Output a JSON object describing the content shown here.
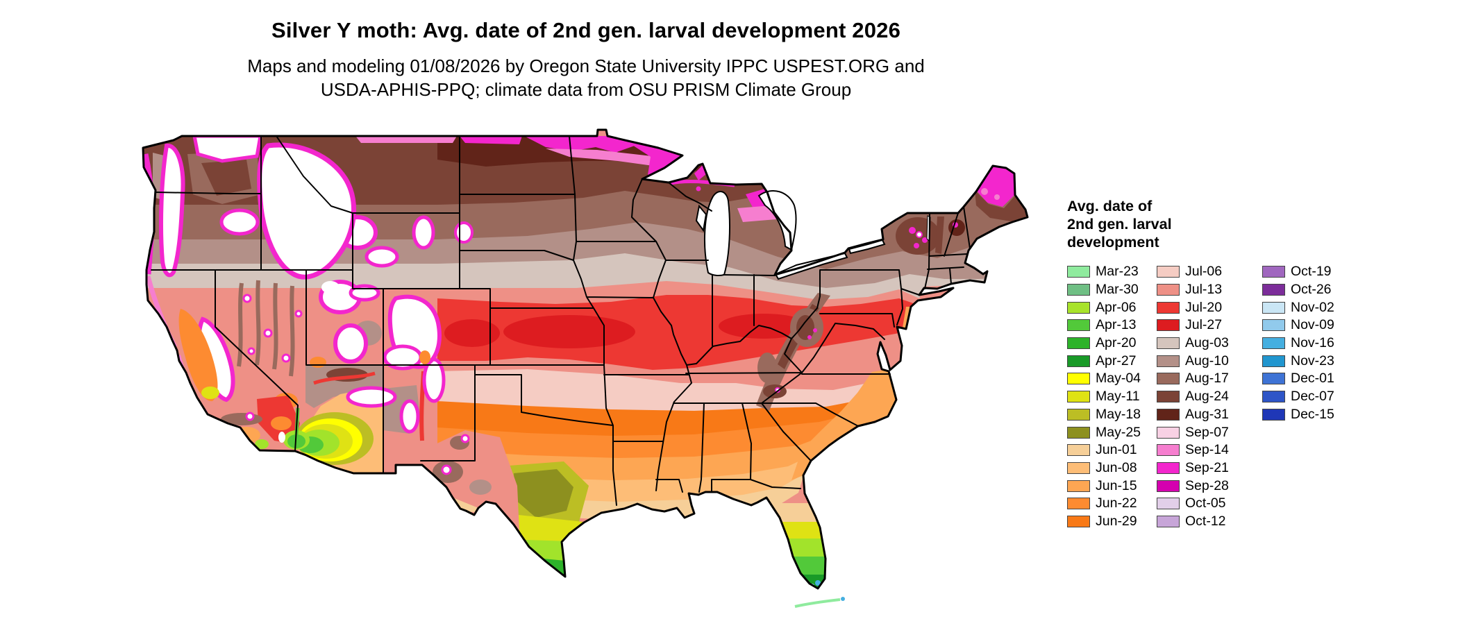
{
  "header": {
    "title": "Silver Y moth: Avg. date of 2nd gen. larval development 2026",
    "subtitle_lines": [
      "Maps and modeling 01/08/2026 by Oregon State University IPPC USPEST.ORG and",
      "USDA-APHIS-PPQ; climate data from OSU PRISM Climate Group"
    ]
  },
  "map": {
    "name": "Contiguous United States raster map of avg. date of 2nd gen. larval development",
    "no_data_color": "#ffffff",
    "boundary_color": "#000000"
  },
  "legend": {
    "title_lines": [
      "Avg. date of",
      "2nd gen. larval",
      "development"
    ],
    "columns": [
      {
        "items": [
          {
            "label": "Mar-23",
            "color": "#8feb9e"
          },
          {
            "label": "Mar-30",
            "color": "#6fbf84"
          },
          {
            "label": "Apr-06",
            "color": "#a8e32b"
          },
          {
            "label": "Apr-13",
            "color": "#52c93a"
          },
          {
            "label": "Apr-20",
            "color": "#2db32a"
          },
          {
            "label": "Apr-27",
            "color": "#199a28"
          },
          {
            "label": "May-04",
            "color": "#ffff00"
          },
          {
            "label": "May-11",
            "color": "#dfe214"
          },
          {
            "label": "May-18",
            "color": "#bcbe24"
          },
          {
            "label": "May-25",
            "color": "#8d901f"
          },
          {
            "label": "Jun-01",
            "color": "#f6cf98"
          },
          {
            "label": "Jun-08",
            "color": "#fdbd77"
          },
          {
            "label": "Jun-15",
            "color": "#fda653"
          },
          {
            "label": "Jun-22",
            "color": "#fd8b31"
          },
          {
            "label": "Jun-29",
            "color": "#f87917"
          }
        ]
      },
      {
        "items": [
          {
            "label": "Jul-06",
            "color": "#f5ccc3"
          },
          {
            "label": "Jul-13",
            "color": "#ee9086"
          },
          {
            "label": "Jul-20",
            "color": "#ed3833"
          },
          {
            "label": "Jul-27",
            "color": "#dd1c20"
          },
          {
            "label": "Aug-03",
            "color": "#d5c5bd"
          },
          {
            "label": "Aug-10",
            "color": "#b39088"
          },
          {
            "label": "Aug-17",
            "color": "#996a5d"
          },
          {
            "label": "Aug-24",
            "color": "#7b4336"
          },
          {
            "label": "Aug-31",
            "color": "#612419"
          },
          {
            "label": "Sep-07",
            "color": "#f8d1e4"
          },
          {
            "label": "Sep-14",
            "color": "#f67ecf"
          },
          {
            "label": "Sep-21",
            "color": "#f326cd"
          },
          {
            "label": "Sep-28",
            "color": "#d500af"
          },
          {
            "label": "Oct-05",
            "color": "#e2cfe9"
          },
          {
            "label": "Oct-12",
            "color": "#c7a5d8"
          }
        ]
      },
      {
        "items": [
          {
            "label": "Oct-19",
            "color": "#a067bf"
          },
          {
            "label": "Oct-26",
            "color": "#7c2d9a"
          },
          {
            "label": "Nov-02",
            "color": "#cae6f5"
          },
          {
            "label": "Nov-09",
            "color": "#91caec"
          },
          {
            "label": "Nov-16",
            "color": "#45afe0"
          },
          {
            "label": "Nov-23",
            "color": "#2196cf"
          },
          {
            "label": "Dec-01",
            "color": "#3e73d5"
          },
          {
            "label": "Dec-07",
            "color": "#2e55c7"
          },
          {
            "label": "Dec-15",
            "color": "#1f37b7"
          }
        ]
      }
    ]
  }
}
